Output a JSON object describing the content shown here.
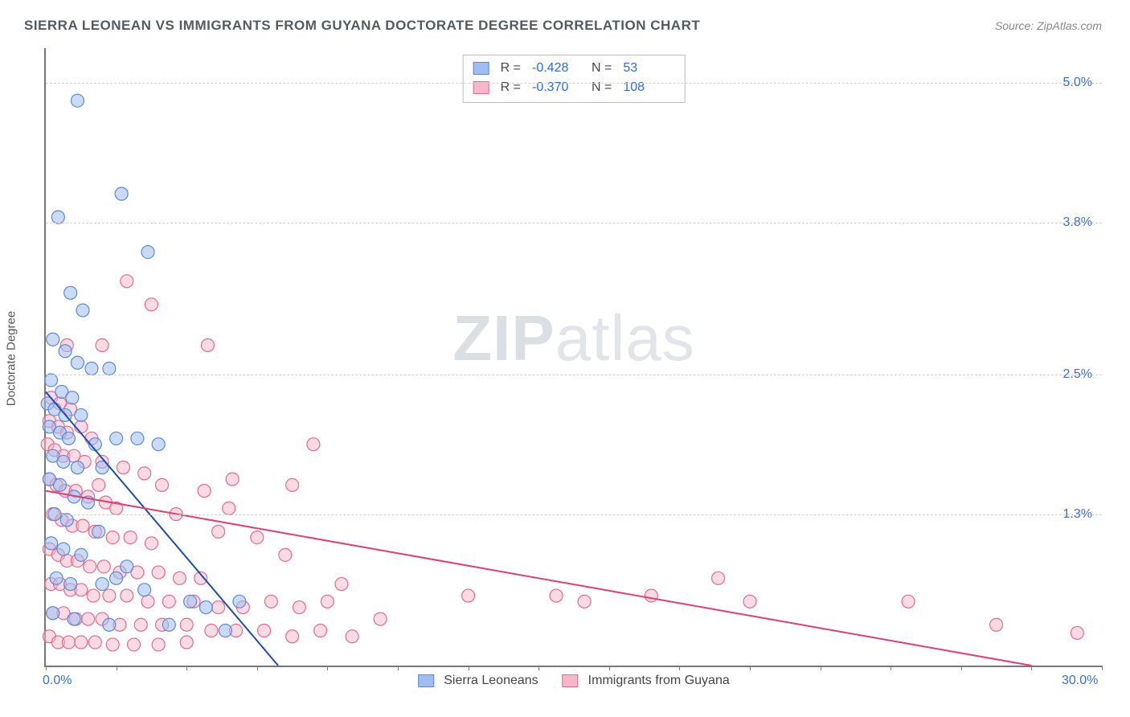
{
  "title": "SIERRA LEONEAN VS IMMIGRANTS FROM GUYANA DOCTORATE DEGREE CORRELATION CHART",
  "source_prefix": "Source: ",
  "source_name": "ZipAtlas.com",
  "watermark_main": "ZIP",
  "watermark_sub": "atlas",
  "chart": {
    "type": "scatter",
    "ylabel": "Doctorate Degree",
    "xlim": [
      0.0,
      30.0
    ],
    "ylim": [
      0.0,
      5.3
    ],
    "x_ticks_minor_step": 2.0,
    "x_tick_labels": [
      {
        "v": 0.0,
        "t": "0.0%"
      },
      {
        "v": 30.0,
        "t": "30.0%"
      }
    ],
    "y_grid": [
      {
        "v": 1.3,
        "t": "1.3%"
      },
      {
        "v": 2.5,
        "t": "2.5%"
      },
      {
        "v": 3.8,
        "t": "3.8%"
      },
      {
        "v": 5.0,
        "t": "5.0%"
      }
    ],
    "background_color": "#ffffff",
    "grid_color": "#cfcfcf",
    "axis_color": "#777777",
    "tick_label_color": "#3b6fd6",
    "series": [
      {
        "id": "sierra",
        "label": "Sierra Leoneans",
        "color_fill": "#9fbdf0",
        "color_stroke": "#5a8ad8",
        "marker_radius": 8,
        "fill_opacity": 0.55,
        "trend": {
          "x1": 0.0,
          "y1": 2.35,
          "x2": 6.6,
          "y2": 0.0,
          "color": "#1b4ea8",
          "width": 2
        },
        "R": "-0.428",
        "N": "53",
        "points": [
          [
            0.9,
            4.85
          ],
          [
            2.15,
            4.05
          ],
          [
            0.35,
            3.85
          ],
          [
            2.9,
            3.55
          ],
          [
            0.7,
            3.2
          ],
          [
            1.05,
            3.05
          ],
          [
            0.2,
            2.8
          ],
          [
            0.55,
            2.7
          ],
          [
            0.9,
            2.6
          ],
          [
            1.3,
            2.55
          ],
          [
            1.8,
            2.55
          ],
          [
            0.15,
            2.45
          ],
          [
            0.45,
            2.35
          ],
          [
            0.75,
            2.3
          ],
          [
            0.05,
            2.25
          ],
          [
            0.25,
            2.2
          ],
          [
            0.55,
            2.15
          ],
          [
            1.0,
            2.15
          ],
          [
            0.1,
            2.05
          ],
          [
            0.4,
            2.0
          ],
          [
            0.65,
            1.95
          ],
          [
            1.4,
            1.9
          ],
          [
            2.0,
            1.95
          ],
          [
            2.6,
            1.95
          ],
          [
            3.2,
            1.9
          ],
          [
            0.2,
            1.8
          ],
          [
            0.5,
            1.75
          ],
          [
            0.9,
            1.7
          ],
          [
            1.6,
            1.7
          ],
          [
            0.1,
            1.6
          ],
          [
            0.4,
            1.55
          ],
          [
            0.8,
            1.45
          ],
          [
            1.2,
            1.4
          ],
          [
            0.25,
            1.3
          ],
          [
            0.6,
            1.25
          ],
          [
            1.5,
            1.15
          ],
          [
            0.15,
            1.05
          ],
          [
            0.5,
            1.0
          ],
          [
            1.0,
            0.95
          ],
          [
            2.3,
            0.85
          ],
          [
            0.3,
            0.75
          ],
          [
            0.7,
            0.7
          ],
          [
            1.6,
            0.7
          ],
          [
            2.0,
            0.75
          ],
          [
            2.8,
            0.65
          ],
          [
            4.1,
            0.55
          ],
          [
            4.55,
            0.5
          ],
          [
            0.2,
            0.45
          ],
          [
            0.8,
            0.4
          ],
          [
            1.8,
            0.35
          ],
          [
            3.5,
            0.35
          ],
          [
            5.1,
            0.3
          ],
          [
            5.5,
            0.55
          ]
        ]
      },
      {
        "id": "guyana",
        "label": "Immigrants from Guyana",
        "color_fill": "#f6b7c8",
        "color_stroke": "#e66a8e",
        "marker_radius": 8,
        "fill_opacity": 0.5,
        "trend": {
          "x1": 0.0,
          "y1": 1.5,
          "x2": 28.0,
          "y2": 0.0,
          "color": "#e13f70",
          "width": 2
        },
        "R": "-0.370",
        "N": "108",
        "points": [
          [
            2.3,
            3.3
          ],
          [
            3.0,
            3.1
          ],
          [
            0.6,
            2.75
          ],
          [
            1.6,
            2.75
          ],
          [
            4.6,
            2.75
          ],
          [
            0.15,
            2.3
          ],
          [
            0.4,
            2.25
          ],
          [
            0.7,
            2.2
          ],
          [
            0.1,
            2.1
          ],
          [
            0.35,
            2.05
          ],
          [
            0.6,
            2.0
          ],
          [
            1.0,
            2.05
          ],
          [
            1.3,
            1.95
          ],
          [
            0.05,
            1.9
          ],
          [
            0.25,
            1.85
          ],
          [
            0.5,
            1.8
          ],
          [
            0.8,
            1.8
          ],
          [
            1.1,
            1.75
          ],
          [
            1.6,
            1.75
          ],
          [
            2.2,
            1.7
          ],
          [
            2.8,
            1.65
          ],
          [
            0.1,
            1.6
          ],
          [
            0.3,
            1.55
          ],
          [
            0.55,
            1.5
          ],
          [
            0.85,
            1.5
          ],
          [
            1.2,
            1.45
          ],
          [
            1.7,
            1.4
          ],
          [
            3.3,
            1.55
          ],
          [
            4.5,
            1.5
          ],
          [
            5.2,
            1.35
          ],
          [
            7.0,
            1.55
          ],
          [
            7.6,
            1.9
          ],
          [
            0.2,
            1.3
          ],
          [
            0.45,
            1.25
          ],
          [
            0.75,
            1.2
          ],
          [
            1.05,
            1.2
          ],
          [
            1.4,
            1.15
          ],
          [
            1.9,
            1.1
          ],
          [
            2.4,
            1.1
          ],
          [
            3.0,
            1.05
          ],
          [
            0.1,
            1.0
          ],
          [
            0.35,
            0.95
          ],
          [
            0.6,
            0.9
          ],
          [
            0.9,
            0.9
          ],
          [
            1.25,
            0.85
          ],
          [
            1.65,
            0.85
          ],
          [
            2.1,
            0.8
          ],
          [
            2.6,
            0.8
          ],
          [
            3.2,
            0.8
          ],
          [
            3.8,
            0.75
          ],
          [
            4.4,
            0.75
          ],
          [
            0.15,
            0.7
          ],
          [
            0.4,
            0.7
          ],
          [
            0.7,
            0.65
          ],
          [
            1.0,
            0.65
          ],
          [
            1.35,
            0.6
          ],
          [
            1.8,
            0.6
          ],
          [
            2.3,
            0.6
          ],
          [
            2.9,
            0.55
          ],
          [
            3.5,
            0.55
          ],
          [
            4.2,
            0.55
          ],
          [
            4.9,
            0.5
          ],
          [
            5.6,
            0.5
          ],
          [
            6.4,
            0.55
          ],
          [
            7.2,
            0.5
          ],
          [
            8.0,
            0.55
          ],
          [
            8.4,
            0.7
          ],
          [
            0.2,
            0.45
          ],
          [
            0.5,
            0.45
          ],
          [
            0.85,
            0.4
          ],
          [
            1.2,
            0.4
          ],
          [
            1.6,
            0.4
          ],
          [
            2.1,
            0.35
          ],
          [
            2.7,
            0.35
          ],
          [
            3.3,
            0.35
          ],
          [
            4.0,
            0.35
          ],
          [
            4.7,
            0.3
          ],
          [
            5.4,
            0.3
          ],
          [
            6.2,
            0.3
          ],
          [
            7.0,
            0.25
          ],
          [
            7.8,
            0.3
          ],
          [
            0.1,
            0.25
          ],
          [
            0.35,
            0.2
          ],
          [
            0.65,
            0.2
          ],
          [
            1.0,
            0.2
          ],
          [
            1.4,
            0.2
          ],
          [
            1.9,
            0.18
          ],
          [
            2.5,
            0.18
          ],
          [
            3.2,
            0.18
          ],
          [
            4.0,
            0.2
          ],
          [
            8.7,
            0.25
          ],
          [
            9.5,
            0.4
          ],
          [
            12.0,
            0.6
          ],
          [
            14.5,
            0.6
          ],
          [
            15.3,
            0.55
          ],
          [
            17.2,
            0.6
          ],
          [
            19.1,
            0.75
          ],
          [
            20.0,
            0.55
          ],
          [
            24.5,
            0.55
          ],
          [
            27.0,
            0.35
          ],
          [
            29.3,
            0.28
          ],
          [
            6.0,
            1.1
          ],
          [
            6.8,
            0.95
          ],
          [
            5.3,
            1.6
          ],
          [
            4.9,
            1.15
          ],
          [
            3.7,
            1.3
          ],
          [
            2.0,
            1.35
          ],
          [
            1.5,
            1.55
          ]
        ]
      }
    ]
  },
  "stats_labels": {
    "R": "R =",
    "N": "N ="
  }
}
